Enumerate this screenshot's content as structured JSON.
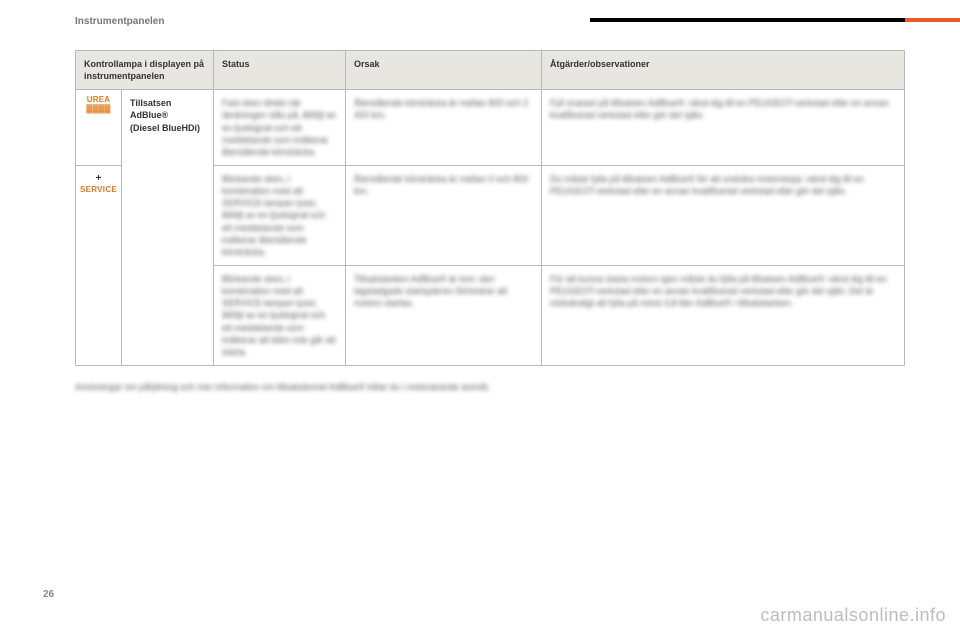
{
  "header": {
    "section_title": "Instrumentpanelen"
  },
  "table": {
    "headers": {
      "col1": "Kontrollampa i displayen på instrumentpanelen",
      "col2": "Status",
      "col3": "Orsak",
      "col4": "Åtgärder/observationer"
    },
    "icons": {
      "urea_line1": "UREA",
      "urea_line2": "▓▓▓▓",
      "plus": "+",
      "service": "SERVICE"
    },
    "rows": [
      {
        "name_line1": "Tillsatsen",
        "name_line2": "AdBlue®",
        "name_line3": "(Diesel BlueHDi)",
        "status": "Fast sken direkt när tändningen slås på, åtföljt av en ljudsignal och ett meddelande som indikerar återstående körsträcka.",
        "cause": "Återstående körsträcka är mellan 800 och 2 400 km.",
        "action": "Fyll snarast på tillsatsen AdBlue®: vänd dig till en PEUGEOT-verkstad eller en annan kvalificerad verkstad eller gör det själv."
      },
      {
        "status": "Blinkande sken, i kombination med att SERVICE-lampan lyser, åtföljt av en ljudsignal och ett meddelande som indikerar återstående körsträcka.",
        "cause": "Återstående körsträcka är mellan 0 och 800 km.",
        "action": "Du måste fylla på tillsatsen AdBlue® för att undvika motorstopp: vänd dig till en PEUGEOT-verkstad eller en annan kvalificerad verkstad eller gör det själv."
      },
      {
        "status": "Blinkande sken, i kombination med att SERVICE-lampan lyser, åtföljt av en ljudsignal och ett meddelande som indikerar att bilen inte går att starta.",
        "cause": "Tillsatstanken AdBlue® är tom: den lagstadgade startspärren förhindrar att motorn startas.",
        "action": "För att kunna starta motorn igen måste du fylla på tillsatsen AdBlue®: vänd dig till en PEUGEOT-verkstad eller en annan kvalificerad verkstad eller gör det själv. Det är nödvändigt att fylla på minst 3,8 liter AdBlue® i tillsatstanken."
      }
    ]
  },
  "footnote": "Anvisningar om påfyllning och mer information om tillsatsämnet AdBlue® hittar du i motsvarande avsnitt.",
  "page_number": "26",
  "watermark": "carmanualsonline.info",
  "colors": {
    "accent_orange": "#e85a2a",
    "icon_orange": "#e07a1a",
    "header_bg": "#e8e6e1",
    "border": "#b9b9b9",
    "watermark": "#bdbdbd"
  }
}
